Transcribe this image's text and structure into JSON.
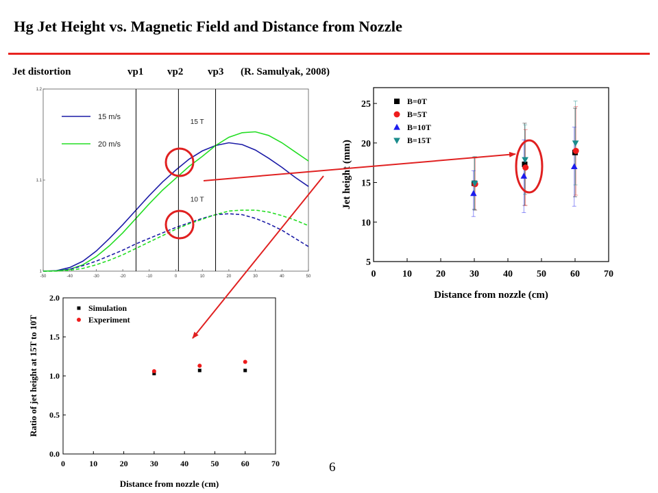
{
  "slide": {
    "title": "Hg Jet Height vs. Magnetic Field and Distance from Nozzle",
    "caption": {
      "label": "Jet distortion",
      "vp1": "vp1",
      "vp2": "vp2",
      "vp3": "vp3",
      "reference": "(R. Samulyak, 2008)"
    },
    "page_number": "6",
    "colors": {
      "accent": "#e8231f",
      "annotation": "#e02020"
    }
  },
  "chart_data": [
    {
      "type": "line",
      "id": "jet-distortion",
      "xlim": [
        -50,
        50
      ],
      "ylim": [
        1.0,
        1.2
      ],
      "xticks": [
        -50,
        -40,
        -30,
        -20,
        -10,
        0,
        10,
        20,
        30,
        40,
        50
      ],
      "yticks": [
        1,
        1.1,
        1.2
      ],
      "legend_position": "top-left",
      "legend": [
        {
          "label": "15 m/s",
          "color": "#1a1aa6"
        },
        {
          "label": "20 m/s",
          "color": "#22dd22"
        }
      ],
      "annotations": [
        "15 T",
        "10 T"
      ],
      "vertical_lines": [
        {
          "label": "vp1",
          "x": -15
        },
        {
          "label": "vp2",
          "x": 1
        },
        {
          "label": "vp3",
          "x": 15
        }
      ],
      "series": [
        {
          "group": "15 T",
          "color": "#1a1aa6",
          "style": "solid",
          "x": [
            -50,
            -45,
            -40,
            -35,
            -30,
            -25,
            -20,
            -15,
            -10,
            -5,
            0,
            5,
            10,
            15,
            20,
            25,
            30,
            35,
            40,
            45,
            50
          ],
          "y": [
            1.0,
            1.0005,
            1.004,
            1.011,
            1.022,
            1.036,
            1.051,
            1.067,
            1.083,
            1.098,
            1.111,
            1.123,
            1.132,
            1.138,
            1.141,
            1.139,
            1.133,
            1.124,
            1.114,
            1.103,
            1.093
          ]
        },
        {
          "group": "15 T",
          "color": "#22dd22",
          "style": "solid",
          "x": [
            -50,
            -45,
            -40,
            -35,
            -30,
            -25,
            -20,
            -15,
            -10,
            -5,
            0,
            5,
            10,
            15,
            20,
            25,
            30,
            35,
            40,
            45,
            50
          ],
          "y": [
            1.0,
            1.0003,
            1.002,
            1.007,
            1.016,
            1.028,
            1.042,
            1.058,
            1.074,
            1.089,
            1.102,
            1.115,
            1.126,
            1.138,
            1.147,
            1.152,
            1.153,
            1.149,
            1.141,
            1.131,
            1.121
          ]
        },
        {
          "group": "10 T",
          "color": "#1a1aa6",
          "style": "dashed",
          "x": [
            -50,
            -45,
            -40,
            -35,
            -30,
            -25,
            -20,
            -15,
            -10,
            -5,
            0,
            5,
            10,
            15,
            20,
            25,
            30,
            35,
            40,
            45,
            50
          ],
          "y": [
            1.0,
            1.0002,
            1.002,
            1.006,
            1.011,
            1.017,
            1.023,
            1.03,
            1.036,
            1.042,
            1.048,
            1.053,
            1.058,
            1.062,
            1.063,
            1.062,
            1.058,
            1.052,
            1.045,
            1.036,
            1.027
          ]
        },
        {
          "group": "10 T",
          "color": "#22dd22",
          "style": "dashed",
          "x": [
            -50,
            -45,
            -40,
            -35,
            -30,
            -25,
            -20,
            -15,
            -10,
            -5,
            0,
            5,
            10,
            15,
            20,
            25,
            30,
            35,
            40,
            45,
            50
          ],
          "y": [
            1.0,
            1.0001,
            1.001,
            1.003,
            1.007,
            1.012,
            1.018,
            1.025,
            1.032,
            1.039,
            1.046,
            1.052,
            1.057,
            1.062,
            1.066,
            1.067,
            1.067,
            1.065,
            1.061,
            1.056,
            1.05
          ]
        }
      ]
    },
    {
      "type": "scatter",
      "id": "jet-height",
      "xlabel": "Distance from nozzle (cm)",
      "ylabel": "Jet height (mm)",
      "xlim": [
        0,
        70
      ],
      "ylim": [
        5,
        27
      ],
      "xticks": [
        0,
        10,
        20,
        30,
        40,
        50,
        60,
        70
      ],
      "yticks": [
        5,
        10,
        15,
        20,
        25
      ],
      "legend_position": "top-left",
      "series": [
        {
          "name": "B=0T",
          "color": "#000000",
          "marker": "square",
          "x": [
            30,
            45,
            60
          ],
          "y": [
            14.9,
            17.3,
            18.8
          ],
          "err": [
            3.3,
            5.2,
            5.6
          ]
        },
        {
          "name": "B=5T",
          "color": "#ee1c1c",
          "marker": "circle",
          "x": [
            30,
            45,
            60
          ],
          "y": [
            14.8,
            16.9,
            19.0
          ],
          "err": [
            3.3,
            4.8,
            5.6
          ]
        },
        {
          "name": "B=10T",
          "color": "#1c1cee",
          "marker": "triangle-up",
          "x": [
            30,
            45,
            60
          ],
          "y": [
            13.6,
            15.8,
            17.0
          ],
          "err": [
            2.9,
            4.6,
            5.0
          ]
        },
        {
          "name": "B=15T",
          "color": "#1a8c8c",
          "marker": "triangle-down",
          "x": [
            30,
            45,
            60
          ],
          "y": [
            14.9,
            17.9,
            20.0
          ],
          "err": [
            3.4,
            4.4,
            5.3
          ]
        }
      ]
    },
    {
      "type": "scatter",
      "id": "ratio",
      "xlabel": "Distance from nozzle (cm)",
      "ylabel": "Ratio of jet height at 15T to 10T",
      "xlim": [
        0,
        70
      ],
      "ylim": [
        0,
        2.0
      ],
      "xticks": [
        0,
        10,
        20,
        30,
        40,
        50,
        60,
        70
      ],
      "yticks": [
        "0.0",
        "0.5",
        "1.0",
        "1.5",
        "2.0"
      ],
      "legend_position": "top-left",
      "series": [
        {
          "name": "Simulation",
          "color": "#000000",
          "marker": "square",
          "x": [
            30,
            45,
            60
          ],
          "y": [
            1.03,
            1.07,
            1.07
          ]
        },
        {
          "name": "Experiment",
          "color": "#ee1c1c",
          "marker": "circle",
          "x": [
            30,
            45,
            60
          ],
          "y": [
            1.06,
            1.13,
            1.18
          ]
        }
      ]
    }
  ]
}
